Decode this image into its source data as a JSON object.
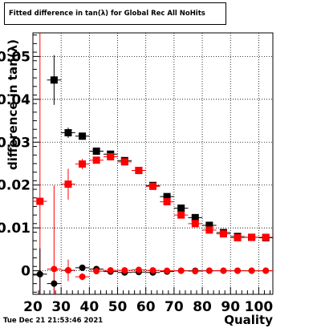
{
  "chart_data": {
    "type": "scatter",
    "title": "Fitted difference in tan(λ) for Global Rec All NoHits",
    "xlabel": "Quality",
    "ylabel": "difference in tan(λ)",
    "xlim": [
      20,
      105
    ],
    "ylim": [
      -0.0055,
      0.0555
    ],
    "x_ticks": [
      20,
      30,
      40,
      50,
      60,
      70,
      80,
      90,
      100
    ],
    "x_tick_labels": [
      "20",
      "30",
      "40",
      "50",
      "60",
      "70",
      "80",
      "90",
      "100"
    ],
    "y_ticks": [
      0,
      0.01,
      0.02,
      0.03,
      0.04,
      0.05
    ],
    "y_tick_labels": [
      "0",
      "0.01",
      "0.02",
      "0.03",
      "0.04",
      "0.05"
    ],
    "grid": true,
    "series": [
      {
        "marker": "square",
        "color": "#000000",
        "points": [
          {
            "x": 27.5,
            "y": 0.0445,
            "err": 0.0058
          },
          {
            "x": 32.5,
            "y": 0.0322,
            "err": 0.0012
          },
          {
            "x": 37.5,
            "y": 0.0314,
            "err": 0.0008
          },
          {
            "x": 42.5,
            "y": 0.0279,
            "err": 0.0005
          },
          {
            "x": 47.5,
            "y": 0.0272,
            "err": 0.0004
          },
          {
            "x": 52.5,
            "y": 0.0257,
            "err": 0.0004
          },
          {
            "x": 57.5,
            "y": 0.0234,
            "err": 0.0003
          },
          {
            "x": 62.5,
            "y": 0.0199,
            "err": 0.0003
          },
          {
            "x": 67.5,
            "y": 0.0173,
            "err": 0.0003
          },
          {
            "x": 72.5,
            "y": 0.0146,
            "err": 0.0003
          },
          {
            "x": 77.5,
            "y": 0.0124,
            "err": 0.0002
          },
          {
            "x": 82.5,
            "y": 0.0106,
            "err": 0.0002
          },
          {
            "x": 87.5,
            "y": 0.0089,
            "err": 0.0002
          },
          {
            "x": 92.5,
            "y": 0.008,
            "err": 0.0002
          },
          {
            "x": 97.5,
            "y": 0.0078,
            "err": 0.0002
          },
          {
            "x": 102.5,
            "y": 0.0077,
            "err": 0.0002
          }
        ]
      },
      {
        "marker": "square",
        "color": "#ff0000",
        "points": [
          {
            "x": 22.5,
            "y": 0.0162,
            "err": 0.055
          },
          {
            "x": 32.5,
            "y": 0.0202,
            "err": 0.0036
          },
          {
            "x": 37.5,
            "y": 0.0249,
            "err": 0.0012
          },
          {
            "x": 42.5,
            "y": 0.0258,
            "err": 0.0006
          },
          {
            "x": 47.5,
            "y": 0.0266,
            "err": 0.0004
          },
          {
            "x": 52.5,
            "y": 0.0254,
            "err": 0.0004
          },
          {
            "x": 57.5,
            "y": 0.0234,
            "err": 0.0003
          },
          {
            "x": 62.5,
            "y": 0.0197,
            "err": 0.0003
          },
          {
            "x": 67.5,
            "y": 0.0161,
            "err": 0.0003
          },
          {
            "x": 72.5,
            "y": 0.013,
            "err": 0.0003
          },
          {
            "x": 77.5,
            "y": 0.011,
            "err": 0.0002
          },
          {
            "x": 82.5,
            "y": 0.0095,
            "err": 0.0002
          },
          {
            "x": 87.5,
            "y": 0.0086,
            "err": 0.0002
          },
          {
            "x": 92.5,
            "y": 0.0077,
            "err": 0.0002
          },
          {
            "x": 97.5,
            "y": 0.0078,
            "err": 0.0002
          },
          {
            "x": 102.5,
            "y": 0.0078,
            "err": 0.0002
          }
        ]
      },
      {
        "marker": "circle",
        "color": "#000000",
        "points": [
          {
            "x": 22.5,
            "y": -0.0008,
            "err": 0.006
          },
          {
            "x": 27.5,
            "y": -0.003,
            "err": 0.0025
          },
          {
            "x": 32.5,
            "y": 0.0001,
            "err": 0.001
          },
          {
            "x": 37.5,
            "y": 0.0007,
            "err": 0.0005
          },
          {
            "x": 42.5,
            "y": 0.0004,
            "err": 0.0003
          },
          {
            "x": 47.5,
            "y": -0.0002,
            "err": 0.0002
          },
          {
            "x": 52.5,
            "y": -0.0004,
            "err": 0.0002
          },
          {
            "x": 57.5,
            "y": -0.0003,
            "err": 0.0002
          },
          {
            "x": 62.5,
            "y": -0.0004,
            "err": 0.0002
          },
          {
            "x": 67.5,
            "y": -0.0002,
            "err": 0.0002
          },
          {
            "x": 72.5,
            "y": 0.0,
            "err": 0.0002
          },
          {
            "x": 77.5,
            "y": 0.0,
            "err": 0.0002
          },
          {
            "x": 82.5,
            "y": 0.0,
            "err": 0.0002
          },
          {
            "x": 87.5,
            "y": 0.0,
            "err": 0.0002
          },
          {
            "x": 92.5,
            "y": 0.0,
            "err": 0.0002
          },
          {
            "x": 97.5,
            "y": 0.0,
            "err": 0.0002
          },
          {
            "x": 102.5,
            "y": 0.0,
            "err": 0.0002
          }
        ]
      },
      {
        "marker": "circle",
        "color": "#ff0000",
        "points": [
          {
            "x": 27.5,
            "y": 0.0004,
            "err": 0.0195
          },
          {
            "x": 32.5,
            "y": 0.0001,
            "err": 0.0025
          },
          {
            "x": 37.5,
            "y": -0.0014,
            "err": 0.0008
          },
          {
            "x": 42.5,
            "y": -0.0001,
            "err": 0.0004
          },
          {
            "x": 47.5,
            "y": 0.0001,
            "err": 0.0003
          },
          {
            "x": 52.5,
            "y": 0.0001,
            "err": 0.0003
          },
          {
            "x": 57.5,
            "y": 0.0002,
            "err": 0.0002
          },
          {
            "x": 62.5,
            "y": 0.0001,
            "err": 0.0002
          },
          {
            "x": 67.5,
            "y": 0.0,
            "err": 0.0002
          },
          {
            "x": 72.5,
            "y": 0.0,
            "err": 0.0002
          },
          {
            "x": 77.5,
            "y": -0.0001,
            "err": 0.0002
          },
          {
            "x": 82.5,
            "y": 0.0,
            "err": 0.0002
          },
          {
            "x": 87.5,
            "y": 0.0,
            "err": 0.0002
          },
          {
            "x": 92.5,
            "y": 0.0,
            "err": 0.0002
          },
          {
            "x": 97.5,
            "y": 0.0,
            "err": 0.0002
          },
          {
            "x": 102.5,
            "y": 0.0,
            "err": 0.0002
          }
        ]
      }
    ]
  },
  "timestamp": "Tue Dec 21 21:53:46 2021"
}
